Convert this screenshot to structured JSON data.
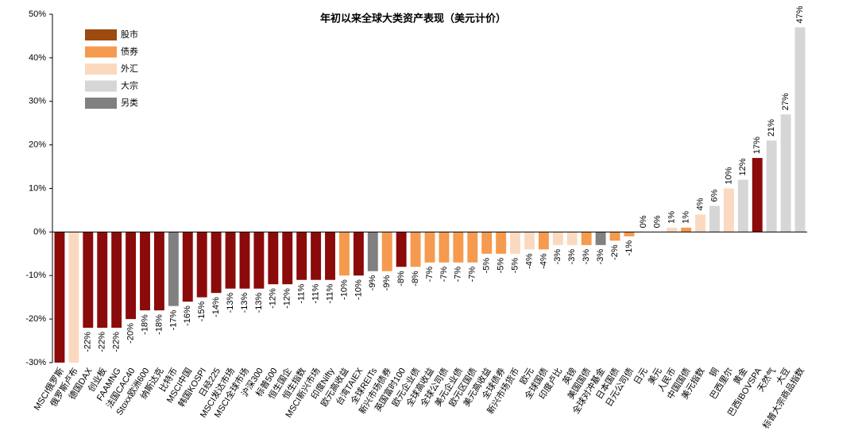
{
  "chart_data": {
    "type": "bar",
    "title": "年初以来全球大类资产表现（美元计价）",
    "categories": [
      "MSCI俄罗斯",
      "俄罗斯卢布",
      "德国DAX",
      "创业板",
      "FAAMNG",
      "法国CAC40",
      "Stoxx欧洲600",
      "纳斯达克",
      "比特币",
      "MSCI中国",
      "韩国KOSPI",
      "日经225",
      "MSCI发达市场",
      "MSCI全球市场",
      "沪深300",
      "标普500",
      "恒生国企",
      "恒生指数",
      "MSCI新兴市场",
      "印度Nifty",
      "欧元高收益",
      "台湾TAIEX",
      "全球REITs",
      "新兴市场债券",
      "英国富时100",
      "欧元企业债",
      "全球高收益",
      "全球公司债",
      "美元企业债",
      "欧元区国债",
      "美元高收益",
      "全球债券",
      "新兴市场货币",
      "欧元",
      "全球国债",
      "印度卢比",
      "英镑",
      "美国国债",
      "全球对冲基金",
      "日本国债",
      "日元公司债",
      "日元",
      "美元",
      "人民币",
      "中国国债",
      "美元指数",
      "铜",
      "巴西里尔",
      "黄金",
      "巴西IBOVSPA",
      "天然气",
      "大豆",
      "标普大宗商品指数"
    ],
    "values": [
      -30,
      -30,
      -22,
      -22,
      -22,
      -20,
      -18,
      -18,
      -17,
      -16,
      -15,
      -14,
      -13,
      -13,
      -13,
      -12,
      -12,
      -11,
      -11,
      -11,
      -10,
      -10,
      -9,
      -9,
      -8,
      -8,
      -7,
      -7,
      -7,
      -7,
      -5,
      -5,
      -5,
      -4,
      -4,
      -3,
      -3,
      -3,
      -3,
      -2,
      -1,
      0,
      0,
      1,
      1,
      4,
      6,
      10,
      12,
      17,
      21,
      27,
      47
    ],
    "value_labels": [
      null,
      null,
      "-22%",
      "-22%",
      "-22%",
      "-20%",
      "-18%",
      "-18%",
      "-17%",
      "-16%",
      "-15%",
      "-14%",
      "-13%",
      "-13%",
      "-13%",
      "-12%",
      "-12%",
      "-11%",
      "-11%",
      "-11%",
      "-10%",
      "-10%",
      "-9%",
      "-9%",
      "-8%",
      "-8%",
      "-7%",
      "-7%",
      "-7%",
      "-7%",
      "-5%",
      "-5%",
      "-5%",
      "-4%",
      "-4%",
      "-3%",
      "-3%",
      "-3%",
      "-3%",
      "-2%",
      "-1%",
      "0%",
      "0%",
      "1%",
      "1%",
      "4%",
      "6%",
      "10%",
      "12%",
      "17%",
      "21%",
      "27%",
      "47%"
    ],
    "colors": [
      "#8b0a0a",
      "#fbd9c0",
      "#8b0a0a",
      "#8b0a0a",
      "#8b0a0a",
      "#8b0a0a",
      "#8b0a0a",
      "#8b0a0a",
      "#808080",
      "#8b0a0a",
      "#8b0a0a",
      "#8b0a0a",
      "#8b0a0a",
      "#8b0a0a",
      "#8b0a0a",
      "#8b0a0a",
      "#8b0a0a",
      "#8b0a0a",
      "#8b0a0a",
      "#8b0a0a",
      "#f59a4e",
      "#8b0a0a",
      "#808080",
      "#f59a4e",
      "#8b0a0a",
      "#f59a4e",
      "#f59a4e",
      "#f59a4e",
      "#f59a4e",
      "#f59a4e",
      "#f59a4e",
      "#f59a4e",
      "#fbd9c0",
      "#fbd9c0",
      "#f59a4e",
      "#fbd9c0",
      "#fbd9c0",
      "#f59a4e",
      "#808080",
      "#f59a4e",
      "#f59a4e",
      "#fbd9c0",
      "#fbd9c0",
      "#fbd9c0",
      "#f59a4e",
      "#fbd9c0",
      "#d6d6d6",
      "#fbd9c0",
      "#d6d6d6",
      "#8b0a0a",
      "#d6d6d6",
      "#d6d6d6",
      "#d6d6d6"
    ],
    "legend": [
      {
        "name": "股市",
        "color": "#9c4a0e"
      },
      {
        "name": "债券",
        "color": "#f59a4e"
      },
      {
        "name": "外汇",
        "color": "#fbd9c0"
      },
      {
        "name": "大宗",
        "color": "#d6d6d6"
      },
      {
        "name": "另类",
        "color": "#808080"
      }
    ],
    "ylim": [
      -30,
      50
    ],
    "yticks": [
      {
        "value": -30,
        "label": "-30%"
      },
      {
        "value": -20,
        "label": "-20%"
      },
      {
        "value": -10,
        "label": "-10%"
      },
      {
        "value": 0,
        "label": "0%"
      },
      {
        "value": 10,
        "label": "10%"
      },
      {
        "value": 20,
        "label": "20%"
      },
      {
        "value": 30,
        "label": "30%"
      },
      {
        "value": 40,
        "label": "40%"
      },
      {
        "value": 50,
        "label": "50%"
      }
    ],
    "grid": false
  }
}
